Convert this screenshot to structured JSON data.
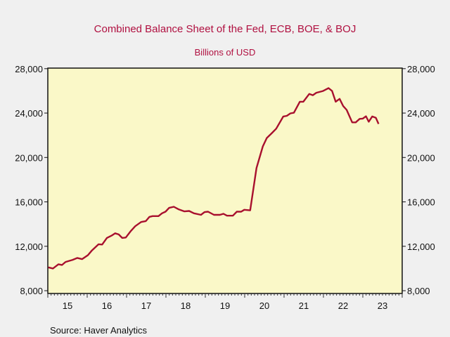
{
  "chart_data": {
    "type": "line",
    "title": "Combined Balance Sheet of the Fed, ECB, BOE, & BOJ",
    "subtitle": "Billions of USD",
    "source": "Source:  Haver Analytics",
    "xlabel": "",
    "ylabel": "",
    "xlim": [
      2015,
      2024
    ],
    "ylim": [
      7750,
      28050
    ],
    "grid": false,
    "y_ticks": [
      8000,
      12000,
      16000,
      20000,
      24000,
      28000
    ],
    "y_tick_labels": [
      "8,000",
      "12,000",
      "16,000",
      "20,000",
      "24,000",
      "28,000"
    ],
    "x_tick_labels": [
      "15",
      "16",
      "17",
      "18",
      "19",
      "20",
      "21",
      "22",
      "23"
    ],
    "colors": {
      "line": "#a8102e",
      "title": "#b01040",
      "plot_bg": "#faf8c8",
      "page_bg": "#f0f0f0"
    },
    "series": [
      {
        "name": "Combined Balance Sheet",
        "x": [
          2015.01,
          2015.13,
          2015.27,
          2015.36,
          2015.45,
          2015.63,
          2015.75,
          2015.87,
          2016.02,
          2016.11,
          2016.29,
          2016.38,
          2016.5,
          2016.62,
          2016.71,
          2016.8,
          2016.89,
          2016.98,
          2017.1,
          2017.22,
          2017.37,
          2017.49,
          2017.58,
          2017.66,
          2017.81,
          2017.9,
          2017.99,
          2018.08,
          2018.2,
          2018.32,
          2018.47,
          2018.59,
          2018.71,
          2018.89,
          2018.98,
          2019.07,
          2019.22,
          2019.37,
          2019.46,
          2019.55,
          2019.7,
          2019.8,
          2019.91,
          2019.99,
          2020.14,
          2020.3,
          2020.46,
          2020.56,
          2020.68,
          2020.8,
          2020.98,
          2021.07,
          2021.16,
          2021.25,
          2021.4,
          2021.49,
          2021.64,
          2021.73,
          2021.82,
          2021.99,
          2022.13,
          2022.22,
          2022.31,
          2022.41,
          2022.5,
          2022.59,
          2022.73,
          2022.82,
          2022.92,
          2023.0,
          2023.08,
          2023.15,
          2023.24,
          2023.33,
          2023.4
        ],
        "y": [
          10100,
          10000,
          10380,
          10320,
          10590,
          10780,
          10950,
          10840,
          11200,
          11590,
          12180,
          12160,
          12750,
          12960,
          13170,
          13070,
          12750,
          12790,
          13340,
          13810,
          14190,
          14270,
          14650,
          14720,
          14720,
          14970,
          15120,
          15460,
          15560,
          15330,
          15140,
          15180,
          14970,
          14830,
          15080,
          15120,
          14830,
          14830,
          14930,
          14760,
          14760,
          15120,
          15120,
          15290,
          15240,
          19050,
          21000,
          21750,
          22160,
          22590,
          23690,
          23750,
          23970,
          24030,
          25020,
          25020,
          25720,
          25610,
          25830,
          25990,
          26250,
          25990,
          25020,
          25280,
          24640,
          24290,
          23160,
          23160,
          23480,
          23500,
          23710,
          23220,
          23690,
          23580,
          23020
        ]
      }
    ]
  }
}
